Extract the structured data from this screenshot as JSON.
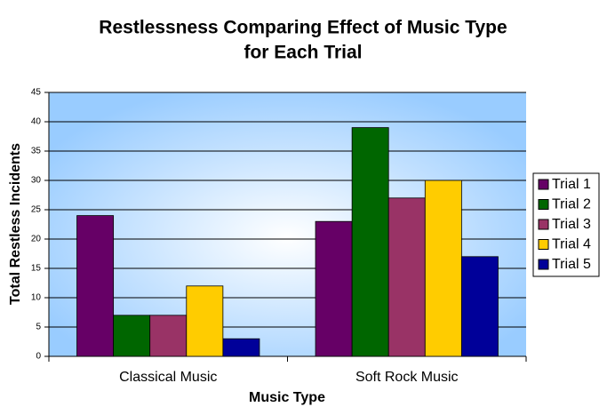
{
  "chart_data": {
    "type": "bar",
    "title": [
      "Restlessness Comparing Effect of Music Type",
      "for Each Trial"
    ],
    "x_label": "Music Type",
    "y_label": "Total Restless Incidents",
    "categories": [
      "Classical Music",
      "Soft Rock Music"
    ],
    "series": [
      {
        "name": "Trial 1",
        "color": "#660066",
        "values": [
          24,
          23
        ]
      },
      {
        "name": "Trial 2",
        "color": "#006600",
        "values": [
          7,
          39
        ]
      },
      {
        "name": "Trial 3",
        "color": "#993366",
        "values": [
          7,
          27
        ]
      },
      {
        "name": "Trial 4",
        "color": "#ffcc00",
        "values": [
          12,
          30
        ]
      },
      {
        "name": "Trial 5",
        "color": "#000099",
        "values": [
          3,
          17
        ]
      }
    ],
    "ylim": [
      0,
      45
    ],
    "yticks": [
      0,
      5,
      10,
      15,
      20,
      25,
      30,
      35,
      40,
      45
    ],
    "grid": true,
    "legend": "right"
  }
}
